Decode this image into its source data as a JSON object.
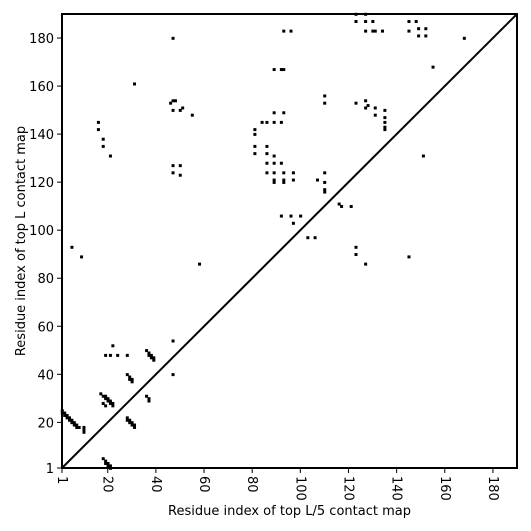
{
  "chart_data": {
    "type": "heatmap",
    "xlabel": "Residue index of top L/5 contact map",
    "ylabel": "Residue index of top L contact map",
    "xlim": [
      1,
      190
    ],
    "ylim": [
      1,
      190
    ],
    "x_ticks": [
      1,
      20,
      40,
      60,
      80,
      100,
      120,
      140,
      160,
      180
    ],
    "y_ticks": [
      1,
      20,
      40,
      60,
      80,
      100,
      120,
      140,
      160,
      180
    ],
    "x_tick_labels": [
      "1",
      "20",
      "40",
      "60",
      "80",
      "100",
      "120",
      "140",
      "160",
      "180"
    ],
    "y_tick_labels": [
      "1",
      "20",
      "40",
      "60",
      "80",
      "100",
      "120",
      "140",
      "160",
      "180"
    ],
    "diagonal": [
      [
        1,
        1
      ],
      [
        190,
        190
      ]
    ],
    "top_L5_contacts": [
      [
        1,
        25
      ],
      [
        1,
        24
      ],
      [
        2,
        24
      ],
      [
        2,
        23
      ],
      [
        3,
        23
      ],
      [
        3,
        22
      ],
      [
        4,
        22
      ],
      [
        4,
        21
      ],
      [
        5,
        21
      ],
      [
        5,
        20
      ],
      [
        6,
        20
      ],
      [
        6,
        19
      ],
      [
        7,
        19
      ],
      [
        7,
        18
      ],
      [
        8,
        18
      ],
      [
        10,
        18
      ],
      [
        10,
        17
      ],
      [
        10,
        16
      ],
      [
        18,
        5
      ],
      [
        19,
        4
      ],
      [
        19,
        3
      ],
      [
        20,
        3
      ],
      [
        20,
        2
      ],
      [
        21,
        2
      ],
      [
        21,
        1
      ],
      [
        17,
        32
      ],
      [
        18,
        31
      ],
      [
        19,
        31
      ],
      [
        19,
        30
      ],
      [
        20,
        30
      ],
      [
        20,
        29
      ],
      [
        21,
        29
      ],
      [
        21,
        28
      ],
      [
        22,
        28
      ],
      [
        22,
        27
      ],
      [
        18,
        28
      ],
      [
        19,
        27
      ],
      [
        28,
        40
      ],
      [
        29,
        39
      ],
      [
        29,
        38
      ],
      [
        30,
        38
      ],
      [
        30,
        37
      ],
      [
        28,
        22
      ],
      [
        28,
        21
      ],
      [
        29,
        21
      ],
      [
        29,
        20
      ],
      [
        30,
        20
      ],
      [
        30,
        19
      ],
      [
        31,
        19
      ],
      [
        31,
        18
      ],
      [
        36,
        50
      ],
      [
        37,
        49
      ],
      [
        37,
        48
      ],
      [
        38,
        48
      ],
      [
        38,
        47
      ],
      [
        39,
        47
      ],
      [
        39,
        46
      ],
      [
        36,
        31
      ],
      [
        37,
        30
      ],
      [
        37,
        29
      ]
    ],
    "top_L_contacts": [
      [
        47,
        180
      ],
      [
        31,
        161
      ],
      [
        47,
        154
      ],
      [
        46,
        153
      ],
      [
        48,
        154
      ],
      [
        47,
        150
      ],
      [
        51,
        151
      ],
      [
        50,
        150
      ],
      [
        55,
        148
      ],
      [
        16,
        145
      ],
      [
        16,
        142
      ],
      [
        18,
        138
      ],
      [
        18,
        135
      ],
      [
        21,
        131
      ],
      [
        47,
        127
      ],
      [
        50,
        127
      ],
      [
        47,
        124
      ],
      [
        50,
        123
      ],
      [
        5,
        93
      ],
      [
        9,
        89
      ],
      [
        58,
        86
      ],
      [
        47,
        54
      ],
      [
        47,
        40
      ],
      [
        19,
        48
      ],
      [
        21,
        48
      ],
      [
        24,
        48
      ],
      [
        28,
        48
      ],
      [
        22,
        52
      ],
      [
        93,
        183
      ],
      [
        96,
        183
      ],
      [
        89,
        167
      ],
      [
        92,
        167
      ],
      [
        93,
        167
      ],
      [
        81,
        142
      ],
      [
        81,
        140
      ],
      [
        84,
        145
      ],
      [
        86,
        145
      ],
      [
        89,
        145
      ],
      [
        92,
        145
      ],
      [
        89,
        149
      ],
      [
        93,
        149
      ],
      [
        81,
        135
      ],
      [
        86,
        135
      ],
      [
        81,
        132
      ],
      [
        86,
        132
      ],
      [
        89,
        131
      ],
      [
        86,
        128
      ],
      [
        89,
        128
      ],
      [
        92,
        128
      ],
      [
        86,
        124
      ],
      [
        89,
        124
      ],
      [
        93,
        124
      ],
      [
        97,
        124
      ],
      [
        89,
        121
      ],
      [
        93,
        121
      ],
      [
        97,
        121
      ],
      [
        89,
        120
      ],
      [
        93,
        120
      ],
      [
        92,
        106
      ],
      [
        96,
        106
      ],
      [
        100,
        106
      ],
      [
        97,
        103
      ],
      [
        103,
        97
      ],
      [
        106,
        97
      ],
      [
        110,
        156
      ],
      [
        110,
        153
      ],
      [
        110,
        124
      ],
      [
        107,
        121
      ],
      [
        110,
        120
      ],
      [
        110,
        117
      ],
      [
        110,
        116
      ],
      [
        116,
        111
      ],
      [
        117,
        110
      ],
      [
        121,
        110
      ],
      [
        123,
        153
      ],
      [
        127,
        154
      ],
      [
        128,
        152
      ],
      [
        127,
        151
      ],
      [
        131,
        151
      ],
      [
        131,
        148
      ],
      [
        135,
        150
      ],
      [
        135,
        147
      ],
      [
        135,
        145
      ],
      [
        135,
        143
      ],
      [
        135,
        142
      ],
      [
        123,
        190
      ],
      [
        123,
        187
      ],
      [
        127,
        190
      ],
      [
        127,
        187
      ],
      [
        130,
        187
      ],
      [
        127,
        183
      ],
      [
        130,
        183
      ],
      [
        131,
        183
      ],
      [
        134,
        183
      ],
      [
        145,
        187
      ],
      [
        148,
        187
      ],
      [
        145,
        183
      ],
      [
        149,
        184
      ],
      [
        152,
        184
      ],
      [
        149,
        181
      ],
      [
        152,
        181
      ],
      [
        151,
        131
      ],
      [
        155,
        168
      ],
      [
        168,
        180
      ],
      [
        123,
        93
      ],
      [
        123,
        90
      ],
      [
        127,
        86
      ],
      [
        145,
        89
      ]
    ]
  }
}
